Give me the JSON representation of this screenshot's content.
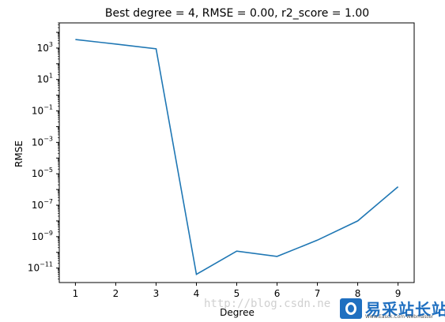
{
  "chart_data": {
    "type": "line",
    "title": "Best degree = 4, RMSE = 0.00, r2_score = 1.00",
    "xlabel": "Degree",
    "ylabel": "RMSE",
    "yscale": "log",
    "x": [
      1,
      2,
      3,
      4,
      5,
      6,
      7,
      8,
      9
    ],
    "series": [
      {
        "values": [
          3500,
          1800,
          900,
          4e-12,
          1.2e-10,
          5.5e-11,
          6e-10,
          1e-08,
          1.5e-06
        ]
      }
    ],
    "xlim": [
      0.6,
      9.4
    ],
    "ylim": [
      1.2e-12,
      40000
    ],
    "xticks": [
      "1",
      "2",
      "3",
      "4",
      "5",
      "6",
      "7",
      "8",
      "9"
    ],
    "yticks": [
      {
        "base": "10",
        "exp": "3",
        "value": 1000
      },
      {
        "base": "10",
        "exp": "1",
        "value": 10
      },
      {
        "base": "10",
        "exp": "−1",
        "value": 0.1
      },
      {
        "base": "10",
        "exp": "−3",
        "value": 0.001
      },
      {
        "base": "10",
        "exp": "−5",
        "value": 1e-05
      },
      {
        "base": "10",
        "exp": "−7",
        "value": 1e-07
      },
      {
        "base": "10",
        "exp": "−9",
        "value": 1e-09
      },
      {
        "base": "10",
        "exp": "−11",
        "value": 1e-11
      }
    ],
    "grid": false,
    "line_color": "#1f77b4"
  },
  "watermark": {
    "url_text": "http://blog.csdn.ne",
    "logo_text": "易采站长站",
    "logo_subtext": "Www.Easck.Com Webmaster"
  }
}
